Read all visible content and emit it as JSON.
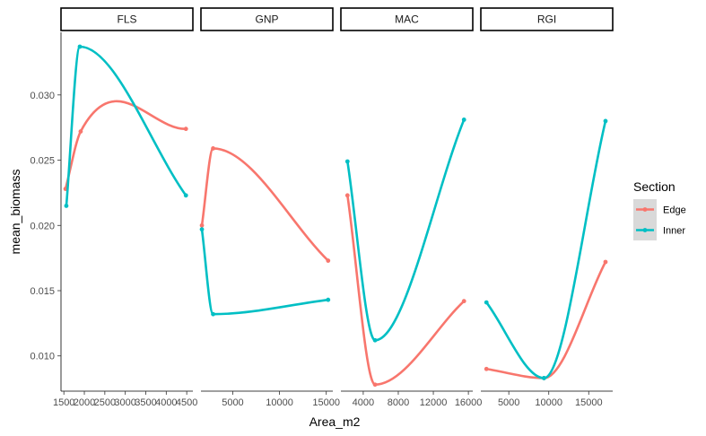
{
  "chart_data": {
    "type": "line",
    "xlabel": "Area_m2",
    "ylabel": "mean_biomass",
    "y_ticks": [
      {
        "value": 0.01,
        "label": "0.010"
      },
      {
        "value": 0.015,
        "label": "0.015"
      },
      {
        "value": 0.02,
        "label": "0.020"
      },
      {
        "value": 0.025,
        "label": "0.025"
      },
      {
        "value": 0.03,
        "label": "0.030"
      }
    ],
    "ylim": [
      0.0073,
      0.0348
    ],
    "legend": {
      "title": "Section",
      "placement": "right",
      "entries": [
        {
          "name": "Edge",
          "color": "#F8766D"
        },
        {
          "name": "Inner",
          "color": "#00BFC4"
        }
      ]
    },
    "panels": [
      {
        "name": "FLS",
        "xlim": [
          1430,
          4650
        ],
        "x_ticks": [
          {
            "value": 1500,
            "label": "1500"
          },
          {
            "value": 2000,
            "label": "2000"
          },
          {
            "value": 2500,
            "label": "2500"
          },
          {
            "value": 3000,
            "label": "3000"
          },
          {
            "value": 3500,
            "label": "3500"
          },
          {
            "value": 4000,
            "label": "4000"
          },
          {
            "value": 4500,
            "label": "4500"
          }
        ],
        "series": [
          {
            "name": "Edge",
            "points": [
              [
                1540,
                0.0228
              ],
              [
                1910,
                0.0272
              ],
              [
                4480,
                0.0274
              ]
            ]
          },
          {
            "name": "Inner",
            "points": [
              [
                1560,
                0.0215
              ],
              [
                1890,
                0.0337
              ],
              [
                4480,
                0.0223
              ]
            ]
          }
        ]
      },
      {
        "name": "GNP",
        "xlim": [
          1600,
          15700
        ],
        "x_ticks": [
          {
            "value": 5000,
            "label": "5000"
          },
          {
            "value": 10000,
            "label": "10000"
          },
          {
            "value": 15000,
            "label": "15000"
          }
        ],
        "series": [
          {
            "name": "Edge",
            "points": [
              [
                1700,
                0.02
              ],
              [
                2900,
                0.0259
              ],
              [
                15200,
                0.0173
              ]
            ]
          },
          {
            "name": "Inner",
            "points": [
              [
                1700,
                0.0197
              ],
              [
                2900,
                0.0132
              ],
              [
                15200,
                0.0143
              ]
            ]
          }
        ]
      },
      {
        "name": "MAC",
        "xlim": [
          1450,
          16500
        ],
        "x_ticks": [
          {
            "value": 4000,
            "label": "4000"
          },
          {
            "value": 8000,
            "label": "8000"
          },
          {
            "value": 12000,
            "label": "12000"
          },
          {
            "value": 16000,
            "label": "16000"
          }
        ],
        "series": [
          {
            "name": "Edge",
            "points": [
              [
                2200,
                0.0223
              ],
              [
                5350,
                0.0078
              ],
              [
                15500,
                0.0142
              ]
            ]
          },
          {
            "name": "Inner",
            "points": [
              [
                2200,
                0.0249
              ],
              [
                5350,
                0.0112
              ],
              [
                15500,
                0.0281
              ]
            ]
          }
        ]
      },
      {
        "name": "RGI",
        "xlim": [
          1500,
          18000
        ],
        "x_ticks": [
          {
            "value": 5000,
            "label": "5000"
          },
          {
            "value": 10000,
            "label": "10000"
          },
          {
            "value": 15000,
            "label": "15000"
          }
        ],
        "series": [
          {
            "name": "Edge",
            "points": [
              [
                2200,
                0.009
              ],
              [
                9400,
                0.0083
              ],
              [
                17100,
                0.0172
              ]
            ]
          },
          {
            "name": "Inner",
            "points": [
              [
                2200,
                0.0141
              ],
              [
                9400,
                0.0083
              ],
              [
                17100,
                0.028
              ]
            ]
          }
        ]
      }
    ]
  }
}
